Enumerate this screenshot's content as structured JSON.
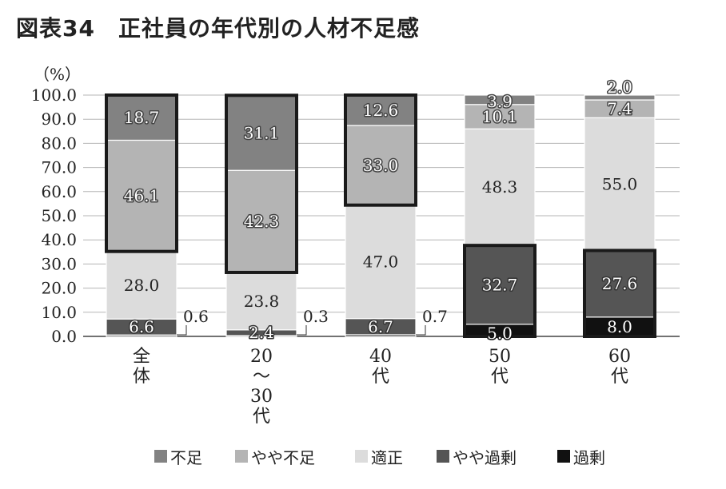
{
  "title": "図表34　正社員の年代別の人材不足感",
  "chart_data": {
    "type": "bar",
    "stacked": true,
    "unit_label": "（%）",
    "ylim": [
      0,
      100
    ],
    "yticks": [
      "0.0",
      "10.0",
      "20.0",
      "30.0",
      "40.0",
      "50.0",
      "60.0",
      "70.0",
      "80.0",
      "90.0",
      "100.0"
    ],
    "grid": true,
    "legend_position": "bottom",
    "categories": [
      [
        "全",
        "体"
      ],
      [
        "20",
        "〜",
        "30",
        "代"
      ],
      [
        "40",
        "代"
      ],
      [
        "50",
        "代"
      ],
      [
        "60",
        "代"
      ]
    ],
    "series": [
      {
        "name": "過剰",
        "color": "#111111",
        "values": [
          0.6,
          0.3,
          0.7,
          5.0,
          8.0
        ],
        "labels": [
          "0.6",
          "0.3",
          "0.7",
          "5.0",
          "8.0"
        ]
      },
      {
        "name": "やや過剰",
        "color": "#555555",
        "values": [
          6.6,
          2.4,
          6.7,
          32.7,
          27.6
        ],
        "labels": [
          "6.6",
          "2.4",
          "6.7",
          "32.7",
          "27.6"
        ]
      },
      {
        "name": "適正",
        "color": "#dcdcdc",
        "values": [
          28.0,
          23.8,
          47.0,
          48.3,
          55.0
        ],
        "labels": [
          "28.0",
          "23.8",
          "47.0",
          "48.3",
          "55.0"
        ]
      },
      {
        "name": "やや不足",
        "color": "#b4b4b4",
        "values": [
          46.1,
          42.3,
          33.0,
          10.1,
          7.4
        ],
        "labels": [
          "46.1",
          "42.3",
          "33.0",
          "10.1",
          "7.4"
        ]
      },
      {
        "name": "不足",
        "color": "#828282",
        "values": [
          18.7,
          31.1,
          12.6,
          3.9,
          2.0
        ],
        "labels": [
          "18.7",
          "31.1",
          "12.6",
          "3.9",
          "2.0"
        ]
      }
    ],
    "legend_order": [
      "不足",
      "やや不足",
      "適正",
      "やや過剰",
      "過剰"
    ]
  }
}
